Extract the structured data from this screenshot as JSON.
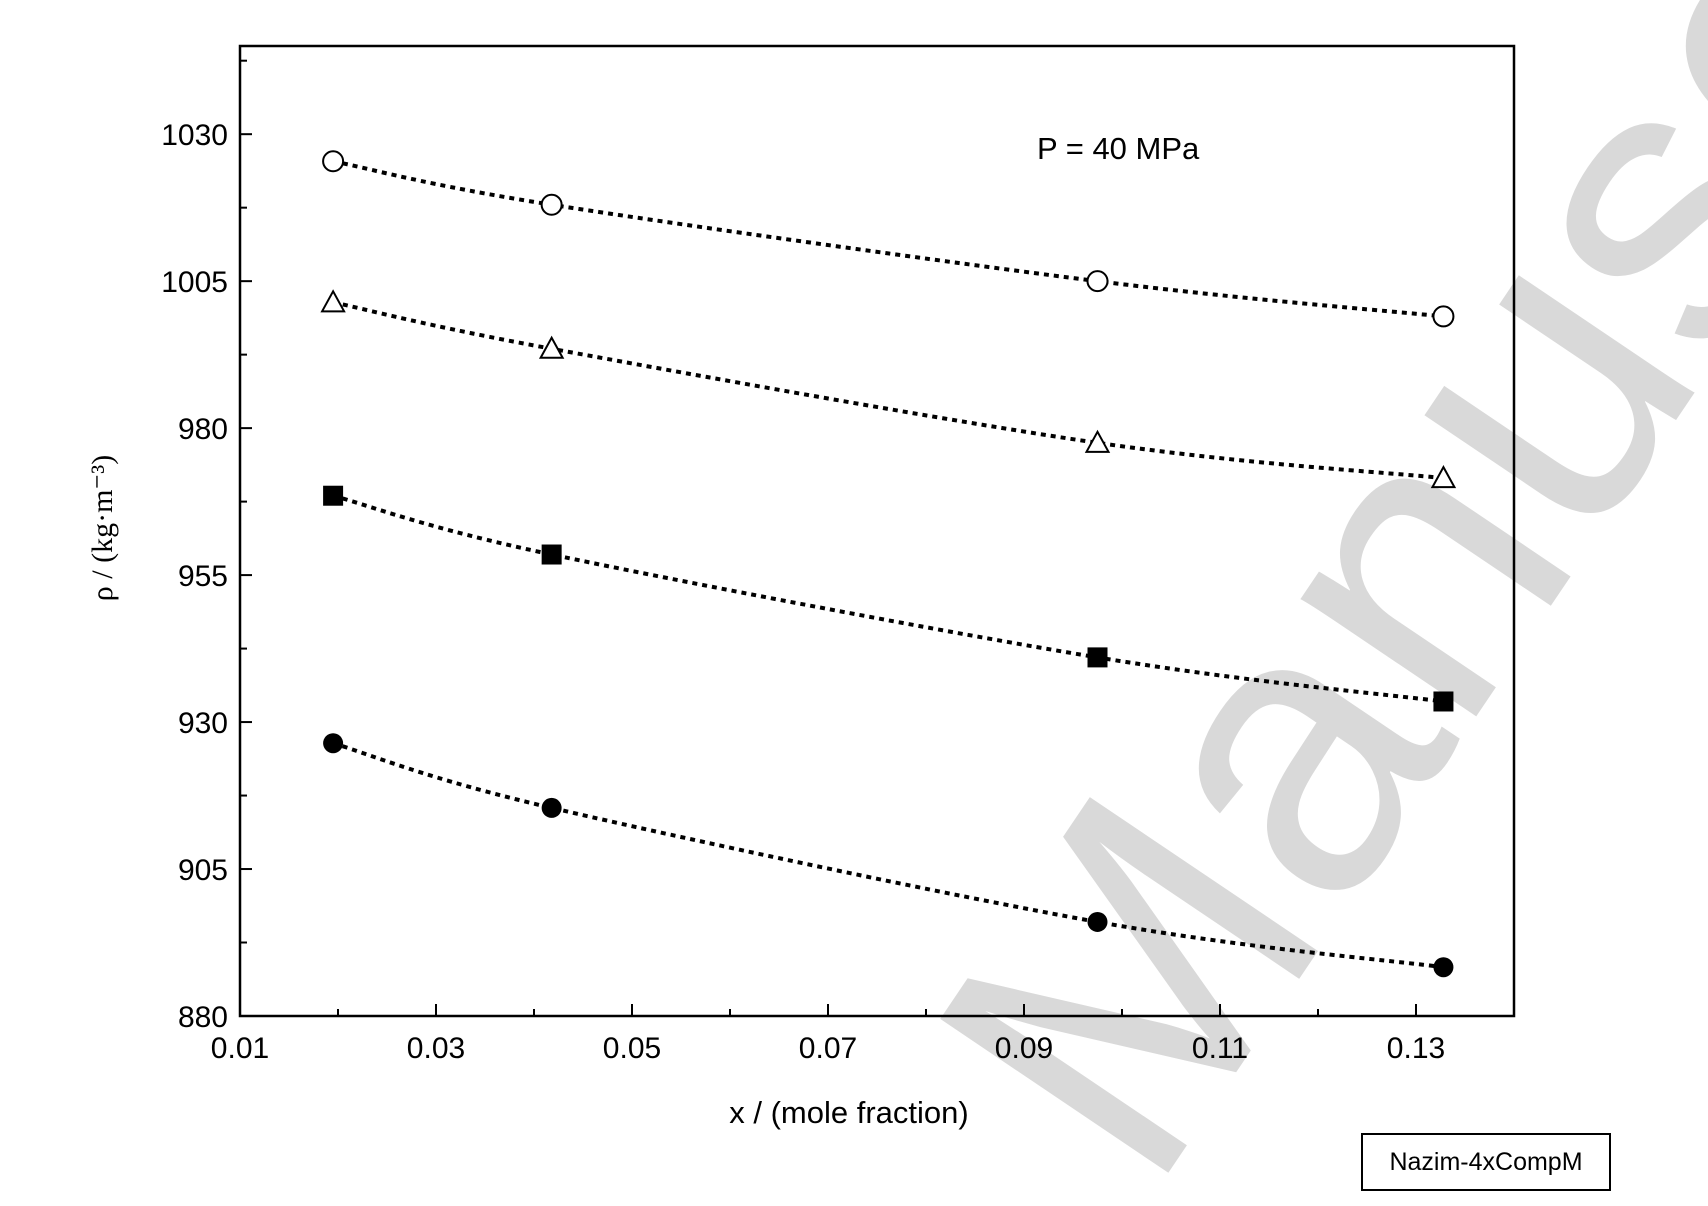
{
  "chart_data": {
    "type": "line",
    "xlabel": "x / (mole fraction)",
    "ylabel": "ρ / (kg·m⁻³)",
    "annotation": "P = 40 MPa",
    "xlim": [
      0.01,
      0.14
    ],
    "ylim": [
      880,
      1045
    ],
    "x_ticks": [
      "0.01",
      "0.03",
      "0.05",
      "0.07",
      "0.09",
      "0.11",
      "0.13"
    ],
    "y_ticks": [
      "880",
      "905",
      "930",
      "955",
      "980",
      "1005",
      "1030"
    ],
    "grid": false,
    "legend": "none",
    "line_style": "dotted",
    "series": [
      {
        "marker": "open-circle",
        "x": [
          0.0195,
          0.0418,
          0.0975,
          0.1328
        ],
        "values": [
          1025.4,
          1018.0,
          1005.0,
          999.0
        ]
      },
      {
        "marker": "open-triangle",
        "x": [
          0.0195,
          0.0418,
          0.0975,
          0.1328
        ],
        "values": [
          1001.4,
          993.5,
          977.5,
          971.5
        ]
      },
      {
        "marker": "filled-square",
        "x": [
          0.0195,
          0.0418,
          0.0975,
          0.1328
        ],
        "values": [
          968.5,
          958.5,
          941.0,
          933.5
        ]
      },
      {
        "marker": "filled-circle",
        "x": [
          0.0195,
          0.0418,
          0.0975,
          0.1328
        ],
        "values": [
          926.4,
          915.4,
          896.0,
          888.3
        ]
      }
    ]
  },
  "watermark": "Manuscript",
  "id_box": "Nazim-4xCompM"
}
